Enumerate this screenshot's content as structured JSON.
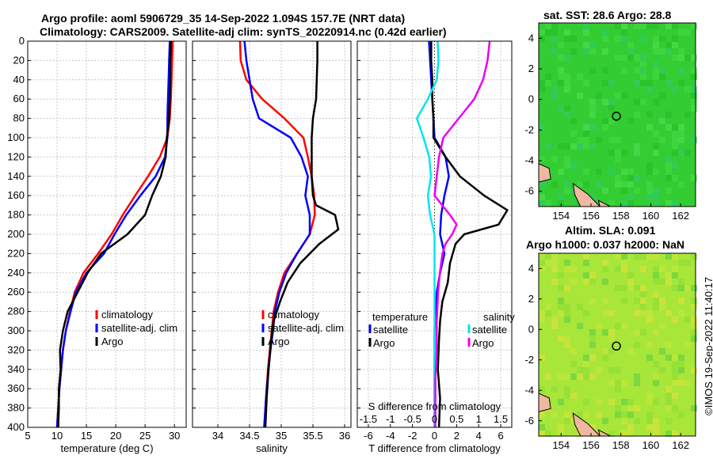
{
  "header": {
    "line1": "Argo profile: aoml 5906729_35 14-Sep-2022 1.094S 157.7E (NRT data)",
    "line2": "Climatology: CARS2009. Satellite-adj clim: synTS_20220914.nc (0.42d earlier)"
  },
  "credit": "©IMOS 19-Sep-2022 11:40:17",
  "colors": {
    "climatology": "#ff0000",
    "satellite": "#0000ff",
    "argo": "#000000",
    "sal_satellite": "#00e5ee",
    "sal_argo": "#ee00ee",
    "sst_map": "#33cc33",
    "sla_map": "#a8e63a",
    "land": "#f0b8a0"
  },
  "chart_data": [
    {
      "id": "temperature",
      "type": "line",
      "xlabel": "temperature (deg C)",
      "ylabel": "",
      "xlim": [
        5,
        32
      ],
      "ylim": [
        400,
        0
      ],
      "xticks": [
        5,
        10,
        15,
        20,
        25,
        30
      ],
      "yticks": [
        0,
        20,
        40,
        60,
        80,
        100,
        120,
        140,
        160,
        180,
        200,
        220,
        240,
        260,
        280,
        300,
        320,
        340,
        360,
        380,
        400
      ],
      "legend": [
        "climatology",
        "satellite-adj. clim",
        "Argo"
      ],
      "series": [
        {
          "name": "climatology",
          "color_key": "climatology",
          "points": [
            [
              29.7,
              0
            ],
            [
              29.6,
              20
            ],
            [
              29.5,
              40
            ],
            [
              29.4,
              60
            ],
            [
              29.2,
              80
            ],
            [
              28.8,
              100
            ],
            [
              27.5,
              120
            ],
            [
              25.5,
              140
            ],
            [
              23.3,
              160
            ],
            [
              21.2,
              180
            ],
            [
              19.3,
              200
            ],
            [
              17.0,
              220
            ],
            [
              14.5,
              240
            ],
            [
              13.0,
              260
            ],
            [
              12.2,
              280
            ],
            [
              11.5,
              300
            ],
            [
              11.0,
              320
            ],
            [
              10.7,
              340
            ],
            [
              10.4,
              360
            ],
            [
              10.2,
              380
            ],
            [
              10.0,
              400
            ]
          ]
        },
        {
          "name": "satellite-adj. clim",
          "color_key": "satellite",
          "points": [
            [
              29.2,
              0
            ],
            [
              29.1,
              20
            ],
            [
              29.0,
              40
            ],
            [
              28.9,
              60
            ],
            [
              28.8,
              80
            ],
            [
              28.8,
              100
            ],
            [
              28.4,
              120
            ],
            [
              26.8,
              140
            ],
            [
              24.2,
              160
            ],
            [
              21.8,
              180
            ],
            [
              19.8,
              200
            ],
            [
              18.0,
              220
            ],
            [
              15.0,
              240
            ],
            [
              13.2,
              260
            ],
            [
              12.3,
              280
            ],
            [
              11.5,
              300
            ],
            [
              11.0,
              320
            ],
            [
              10.7,
              340
            ],
            [
              10.4,
              360
            ],
            [
              10.2,
              380
            ],
            [
              10.0,
              400
            ]
          ]
        },
        {
          "name": "Argo",
          "color_key": "argo",
          "points": [
            [
              29.4,
              0
            ],
            [
              29.3,
              20
            ],
            [
              29.3,
              40
            ],
            [
              29.2,
              60
            ],
            [
              29.1,
              80
            ],
            [
              28.7,
              100
            ],
            [
              28.5,
              120
            ],
            [
              27.7,
              140
            ],
            [
              26.2,
              160
            ],
            [
              25.0,
              180
            ],
            [
              22.0,
              200
            ],
            [
              17.5,
              220
            ],
            [
              15.2,
              240
            ],
            [
              13.5,
              260
            ],
            [
              11.8,
              280
            ],
            [
              11.0,
              300
            ],
            [
              10.5,
              320
            ],
            [
              10.6,
              340
            ],
            [
              10.3,
              360
            ],
            [
              10.3,
              380
            ],
            [
              10.2,
              400
            ]
          ]
        }
      ]
    },
    {
      "id": "salinity",
      "type": "line",
      "xlabel": "salinity",
      "ylabel": "",
      "xlim": [
        33.6,
        36.1
      ],
      "ylim": [
        400,
        0
      ],
      "xticks": [
        34,
        34.5,
        35,
        35.5,
        36
      ],
      "xtick_labels": [
        "34",
        "34.5",
        "35",
        "35.5",
        "36"
      ],
      "legend": [
        "climatology",
        "satellite-adj. clim",
        "Argo"
      ],
      "series": [
        {
          "name": "climatology",
          "color_key": "climatology",
          "points": [
            [
              34.35,
              0
            ],
            [
              34.36,
              20
            ],
            [
              34.45,
              40
            ],
            [
              34.7,
              60
            ],
            [
              35.05,
              80
            ],
            [
              35.35,
              100
            ],
            [
              35.42,
              120
            ],
            [
              35.48,
              140
            ],
            [
              35.52,
              160
            ],
            [
              35.53,
              180
            ],
            [
              35.45,
              200
            ],
            [
              35.25,
              220
            ],
            [
              35.05,
              240
            ],
            [
              34.95,
              260
            ],
            [
              34.88,
              280
            ],
            [
              34.85,
              300
            ],
            [
              34.82,
              320
            ],
            [
              34.79,
              340
            ],
            [
              34.77,
              360
            ],
            [
              34.75,
              380
            ],
            [
              34.74,
              400
            ]
          ]
        },
        {
          "name": "satellite-adj. clim",
          "color_key": "satellite",
          "points": [
            [
              34.42,
              0
            ],
            [
              34.45,
              20
            ],
            [
              34.5,
              40
            ],
            [
              34.55,
              60
            ],
            [
              34.65,
              80
            ],
            [
              35.15,
              100
            ],
            [
              35.32,
              120
            ],
            [
              35.42,
              140
            ],
            [
              35.38,
              160
            ],
            [
              35.45,
              180
            ],
            [
              35.45,
              200
            ],
            [
              35.25,
              220
            ],
            [
              35.08,
              240
            ],
            [
              34.97,
              260
            ],
            [
              34.9,
              280
            ],
            [
              34.87,
              300
            ],
            [
              34.83,
              320
            ],
            [
              34.8,
              340
            ],
            [
              34.77,
              360
            ],
            [
              34.75,
              380
            ],
            [
              34.73,
              400
            ]
          ]
        },
        {
          "name": "Argo",
          "color_key": "argo",
          "points": [
            [
              35.57,
              0
            ],
            [
              35.57,
              20
            ],
            [
              35.56,
              40
            ],
            [
              35.55,
              60
            ],
            [
              35.5,
              80
            ],
            [
              35.48,
              100
            ],
            [
              35.48,
              120
            ],
            [
              35.48,
              140
            ],
            [
              35.5,
              160
            ],
            [
              35.55,
              170
            ],
            [
              35.85,
              180
            ],
            [
              35.9,
              195
            ],
            [
              35.6,
              210
            ],
            [
              35.3,
              230
            ],
            [
              35.1,
              250
            ],
            [
              34.98,
              270
            ],
            [
              34.88,
              290
            ],
            [
              34.84,
              310
            ],
            [
              34.8,
              340
            ],
            [
              34.77,
              370
            ],
            [
              34.75,
              400
            ]
          ]
        }
      ]
    },
    {
      "id": "differences",
      "type": "line",
      "xlabel": "T difference from climatology",
      "xlabel2": "S difference from climatology",
      "xlim": [
        -7,
        7
      ],
      "x2lim": [
        -1.75,
        1.75
      ],
      "ylim": [
        400,
        0
      ],
      "xticks": [
        -6,
        -4,
        -2,
        0,
        2,
        4,
        6
      ],
      "x2ticks": [
        -1.5,
        -1,
        -0.5,
        0,
        0.5,
        1,
        1.5
      ],
      "x2tick_labels": [
        "-1.5",
        "-1",
        "-0.5",
        "0",
        "0.5",
        "1",
        "1.5"
      ],
      "legend_temperature_title": "temperature",
      "legend_salinity_title": "salinity",
      "legend_temperature": [
        "satellite",
        "Argo"
      ],
      "legend_salinity": [
        "satellite",
        "Argo"
      ],
      "series": [
        {
          "name": "T satellite",
          "color_key": "satellite",
          "axis": "T",
          "points": [
            [
              -0.5,
              0
            ],
            [
              -0.4,
              20
            ],
            [
              -0.3,
              40
            ],
            [
              -0.2,
              60
            ],
            [
              -0.1,
              80
            ],
            [
              0,
              100
            ],
            [
              1.0,
              120
            ],
            [
              1.3,
              140
            ],
            [
              0.9,
              160
            ],
            [
              0.6,
              180
            ],
            [
              0.5,
              200
            ],
            [
              0.9,
              220
            ],
            [
              0.5,
              240
            ],
            [
              0.2,
              260
            ],
            [
              0.1,
              280
            ],
            [
              0.0,
              300
            ],
            [
              0.0,
              330
            ],
            [
              0.0,
              360
            ],
            [
              0.0,
              380
            ],
            [
              0.0,
              400
            ]
          ]
        },
        {
          "name": "T Argo",
          "color_key": "argo",
          "axis": "T",
          "points": [
            [
              -0.3,
              0
            ],
            [
              -0.3,
              20
            ],
            [
              -0.2,
              40
            ],
            [
              -0.2,
              60
            ],
            [
              -0.1,
              80
            ],
            [
              -0.1,
              100
            ],
            [
              1.0,
              120
            ],
            [
              2.3,
              140
            ],
            [
              4.5,
              160
            ],
            [
              6.6,
              175
            ],
            [
              5.8,
              190
            ],
            [
              2.7,
              200
            ],
            [
              1.9,
              210
            ],
            [
              1.4,
              230
            ],
            [
              1.2,
              250
            ],
            [
              0.7,
              270
            ],
            [
              0.5,
              290
            ],
            [
              0.4,
              310
            ],
            [
              0.3,
              340
            ],
            [
              0.5,
              370
            ],
            [
              0.4,
              400
            ]
          ]
        },
        {
          "name": "S satellite",
          "color_key": "sal_satellite",
          "axis": "S",
          "points": [
            [
              0.07,
              0
            ],
            [
              0.09,
              20
            ],
            [
              0.05,
              40
            ],
            [
              -0.15,
              60
            ],
            [
              -0.4,
              80
            ],
            [
              -0.25,
              100
            ],
            [
              -0.12,
              120
            ],
            [
              -0.08,
              140
            ],
            [
              -0.15,
              160
            ],
            [
              -0.1,
              180
            ],
            [
              0.0,
              200
            ],
            [
              0.0,
              230
            ],
            [
              0.0,
              260
            ],
            [
              0.0,
              290
            ],
            [
              0.0,
              320
            ],
            [
              0.0,
              350
            ],
            [
              0.0,
              380
            ],
            [
              0.0,
              400
            ]
          ]
        },
        {
          "name": "S Argo",
          "color_key": "sal_argo",
          "axis": "S",
          "points": [
            [
              1.25,
              0
            ],
            [
              1.2,
              20
            ],
            [
              1.1,
              40
            ],
            [
              0.9,
              60
            ],
            [
              0.55,
              80
            ],
            [
              0.2,
              100
            ],
            [
              0.1,
              120
            ],
            [
              0.05,
              140
            ],
            [
              0.0,
              160
            ],
            [
              0.35,
              180
            ],
            [
              0.5,
              190
            ],
            [
              0.4,
              200
            ],
            [
              0.25,
              210
            ],
            [
              0.18,
              220
            ],
            [
              0.12,
              240
            ],
            [
              0.08,
              260
            ],
            [
              0.05,
              290
            ],
            [
              0.05,
              320
            ],
            [
              0.02,
              350
            ],
            [
              0.02,
              380
            ],
            [
              0.02,
              400
            ]
          ]
        }
      ]
    },
    {
      "id": "sst_map",
      "type": "heatmap",
      "title": "sat. SST: 28.6 Argo: 28.8",
      "xlim": [
        152.5,
        163
      ],
      "ylim": [
        -7,
        5
      ],
      "xticks": [
        154,
        156,
        158,
        160,
        162
      ],
      "yticks": [
        -6,
        -4,
        -2,
        0,
        2,
        4
      ],
      "profile_location": [
        157.7,
        -1.094
      ]
    },
    {
      "id": "sla_map",
      "type": "heatmap",
      "title1": "Altim. SLA: 0.091",
      "title2": "Argo h1000: 0.037 h2000: NaN",
      "xlim": [
        152.5,
        163
      ],
      "ylim": [
        -7,
        5
      ],
      "xticks": [
        154,
        156,
        158,
        160,
        162
      ],
      "yticks": [
        -6,
        -4,
        -2,
        0,
        2,
        4
      ],
      "profile_location": [
        157.7,
        -1.094
      ]
    }
  ]
}
